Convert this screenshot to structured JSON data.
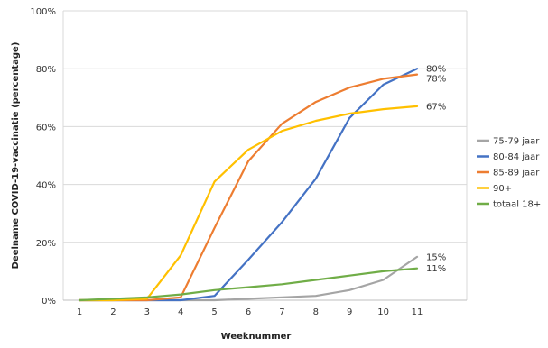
{
  "chart_data": {
    "type": "line",
    "title": "",
    "xlabel": "Weeknummer",
    "ylabel": "Deelname COVID-19-vaccinatie (percentage)",
    "x": [
      1,
      2,
      3,
      4,
      5,
      6,
      7,
      8,
      9,
      10,
      11
    ],
    "xlim": [
      1,
      11
    ],
    "ylim": [
      0,
      100
    ],
    "y_ticks": [
      "0%",
      "20%",
      "40%",
      "60%",
      "80%",
      "100%"
    ],
    "y_tick_values": [
      0,
      20,
      40,
      60,
      80,
      100
    ],
    "grid": "horizontal",
    "legend_position": "right",
    "series": [
      {
        "name": "75-79 jaar",
        "color": "#a5a5a5",
        "values": [
          0,
          0,
          0,
          0,
          0,
          0.5,
          1,
          1.5,
          3.5,
          7,
          15
        ],
        "end_label": "15%"
      },
      {
        "name": "80-84 jaar",
        "color": "#4472c4",
        "values": [
          0,
          0,
          0,
          0,
          1.5,
          14,
          27,
          42,
          63,
          74.5,
          80
        ],
        "end_label": "80%"
      },
      {
        "name": "85-89 jaar",
        "color": "#ed7d31",
        "values": [
          0,
          0,
          0,
          1,
          25,
          48,
          61,
          68.5,
          73.5,
          76.5,
          78
        ],
        "end_label": "78%"
      },
      {
        "name": "90+",
        "color": "#ffc000",
        "values": [
          0,
          0,
          0.5,
          15.5,
          41,
          52,
          58.5,
          62,
          64.5,
          66,
          67
        ],
        "end_label": "67%"
      },
      {
        "name": "totaal 18+",
        "color": "#70ad47",
        "values": [
          0,
          0.5,
          1,
          2,
          3.5,
          4.5,
          5.5,
          7,
          8.5,
          10,
          11
        ],
        "end_label": "11%"
      }
    ]
  }
}
